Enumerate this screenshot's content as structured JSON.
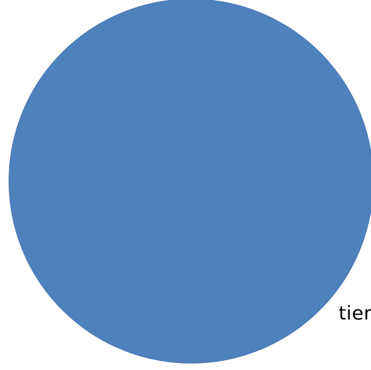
{
  "shape": {
    "name": "circle",
    "fill_color": "#4f81bd",
    "stroke_color": "#4a7ab5"
  },
  "label": {
    "text": "tier",
    "color": "#000000"
  }
}
